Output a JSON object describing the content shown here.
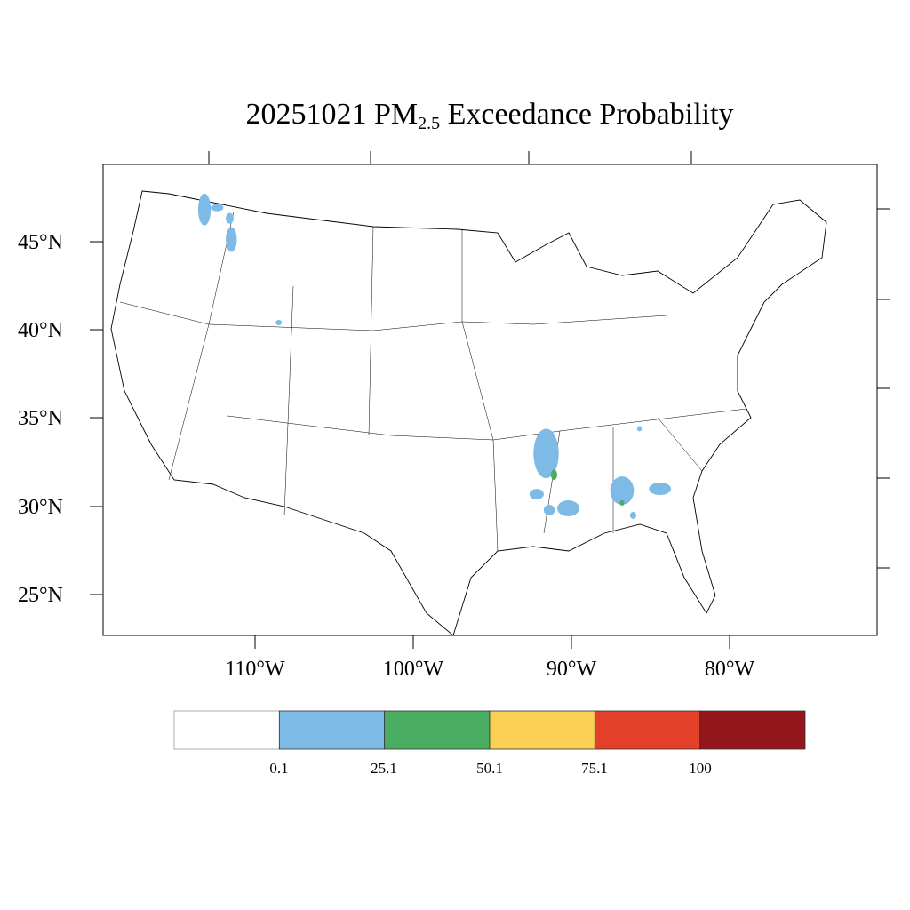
{
  "title": {
    "prefix": "20251021 PM",
    "subscript": "2.5",
    "suffix": " Exceedance Probability"
  },
  "lat_labels": [
    "45°N",
    "40°N",
    "35°N",
    "30°N",
    "25°N"
  ],
  "lon_labels": [
    "110°W",
    "100°W",
    "90°W",
    "80°W"
  ],
  "legend": {
    "colors": [
      "#ffffff",
      "#7dbbe6",
      "#4aae62",
      "#fad055",
      "#e24028",
      "#92161c"
    ],
    "labels": [
      "0.1",
      "25.1",
      "50.1",
      "75.1",
      "100"
    ]
  },
  "exceedance_areas": [
    {
      "lon": -113.2,
      "lat": 46.8,
      "extent_deg": [
        0.4,
        0.9
      ],
      "class": 1
    },
    {
      "lon": -112.4,
      "lat": 46.9,
      "extent_deg": [
        0.4,
        0.2
      ],
      "class": 1
    },
    {
      "lon": -111.6,
      "lat": 46.3,
      "extent_deg": [
        0.25,
        0.3
      ],
      "class": 1
    },
    {
      "lon": -111.5,
      "lat": 45.1,
      "extent_deg": [
        0.35,
        0.7
      ],
      "class": 1
    },
    {
      "lon": -108.5,
      "lat": 40.4,
      "extent_deg": [
        0.2,
        0.15
      ],
      "class": 1
    },
    {
      "lon": -91.6,
      "lat": 33.0,
      "extent_deg": [
        0.8,
        1.4
      ],
      "class": 1
    },
    {
      "lon": -92.2,
      "lat": 30.7,
      "extent_deg": [
        0.45,
        0.3
      ],
      "class": 1
    },
    {
      "lon": -91.4,
      "lat": 29.8,
      "extent_deg": [
        0.35,
        0.3
      ],
      "class": 1
    },
    {
      "lon": -90.2,
      "lat": 29.9,
      "extent_deg": [
        0.7,
        0.45
      ],
      "class": 1
    },
    {
      "lon": -86.8,
      "lat": 30.9,
      "extent_deg": [
        0.75,
        0.8
      ],
      "class": 1
    },
    {
      "lon": -85.7,
      "lat": 34.4,
      "extent_deg": [
        0.15,
        0.15
      ],
      "class": 1
    },
    {
      "lon": -84.4,
      "lat": 31.0,
      "extent_deg": [
        0.7,
        0.35
      ],
      "class": 1
    },
    {
      "lon": -86.1,
      "lat": 29.5,
      "extent_deg": [
        0.2,
        0.2
      ],
      "class": 1
    },
    {
      "lon": -91.1,
      "lat": 31.8,
      "extent_deg": [
        0.2,
        0.3
      ],
      "class": 2
    },
    {
      "lon": -86.8,
      "lat": 30.2,
      "extent_deg": [
        0.15,
        0.15
      ],
      "class": 2
    }
  ]
}
